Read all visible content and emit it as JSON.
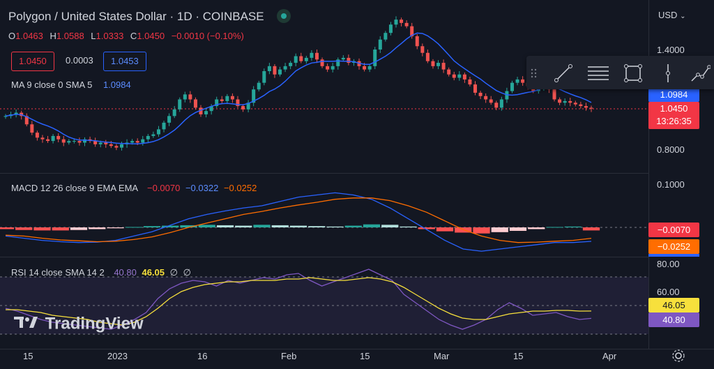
{
  "header": {
    "symbol_title": "Polygon / United States Dollar · 1D · COINBASE",
    "currency": "USD",
    "ohlc": [
      {
        "key": "O",
        "value": "1.0463"
      },
      {
        "key": "H",
        "value": "1.0588"
      },
      {
        "key": "L",
        "value": "1.0333"
      },
      {
        "key": "C",
        "value": "1.0450"
      },
      {
        "key": "",
        "value": "−0.0010 (−0.10%)"
      }
    ],
    "bid": "1.0450",
    "spread": "0.0003",
    "ask": "1.0453"
  },
  "indicators": {
    "ma": {
      "label": "MA 9 close 0 SMA 5",
      "value": "1.0984"
    },
    "macd": {
      "label": "MACD 12 26 close 9 EMA EMA",
      "hist": "−0.0070",
      "macd": "−0.0322",
      "signal": "−0.0252"
    },
    "rsi": {
      "label": "RSI 14 close SMA 14 2",
      "rsi": "40.80",
      "ma": "46.05",
      "extra1": "∅",
      "extra2": "∅"
    }
  },
  "price_axis": {
    "labels": [
      "1.4000",
      "0.8000"
    ]
  },
  "macd_axis": {
    "labels": [
      "0.1000"
    ]
  },
  "rsi_axis": {
    "labels": [
      "80.00",
      "60.00"
    ]
  },
  "tags": {
    "ma": "1.0984",
    "price": "1.0450",
    "countdown": "13:26:35",
    "macd_hist": "−0.0070",
    "macd_signal": "−0.0252",
    "rsi_ma": "46.05",
    "rsi": "40.80"
  },
  "time_axis": {
    "labels": [
      "15",
      "2023",
      "16",
      "Feb",
      "15",
      "Mar",
      "15",
      "Apr"
    ]
  },
  "logo_text": "TradingView",
  "colors": {
    "up": "#26a69a",
    "down": "#ef5350",
    "ma": "#2962ff",
    "signal": "#ff6d00",
    "rsi": "#7e57c2",
    "rsi_ma": "#f7e03c",
    "bg": "#131722"
  },
  "chart_data": {
    "type": "candlestick",
    "title": "Polygon / United States Dollar · 1D · COINBASE",
    "price_axis_ticks": [
      1.4,
      0.8
    ],
    "close": [
      1.0,
      1.01,
      1.02,
      1.0,
      0.95,
      0.9,
      0.87,
      0.86,
      0.85,
      0.88,
      0.86,
      0.84,
      0.85,
      0.85,
      0.84,
      0.86,
      0.85,
      0.83,
      0.84,
      0.83,
      0.82,
      0.81,
      0.83,
      0.84,
      0.85,
      0.84,
      0.86,
      0.88,
      0.89,
      0.92,
      0.96,
      1.0,
      1.04,
      1.1,
      1.13,
      1.1,
      1.05,
      1.01,
      1.03,
      1.06,
      1.1,
      1.09,
      1.12,
      1.1,
      1.06,
      1.04,
      1.08,
      1.16,
      1.2,
      1.27,
      1.3,
      1.25,
      1.28,
      1.3,
      1.32,
      1.36,
      1.33,
      1.35,
      1.38,
      1.34,
      1.3,
      1.28,
      1.3,
      1.34,
      1.35,
      1.32,
      1.33,
      1.3,
      1.28,
      1.3,
      1.4,
      1.46,
      1.5,
      1.55,
      1.58,
      1.56,
      1.54,
      1.48,
      1.42,
      1.38,
      1.33,
      1.3,
      1.32,
      1.28,
      1.25,
      1.23,
      1.25,
      1.22,
      1.19,
      1.14,
      1.12,
      1.1,
      1.08,
      1.05,
      1.1,
      1.15,
      1.2,
      1.22,
      1.2,
      1.18,
      1.15,
      1.17,
      1.19,
      1.16,
      1.1,
      1.08,
      1.09,
      1.08,
      1.07,
      1.06,
      1.05,
      1.045
    ],
    "macd": {
      "macd_line": [
        -0.02,
        -0.025,
        -0.03,
        -0.033,
        -0.035,
        -0.034,
        -0.03,
        -0.02,
        -0.01,
        0.005,
        0.02,
        0.03,
        0.038,
        0.045,
        0.05,
        0.06,
        0.07,
        0.075,
        0.08,
        0.075,
        0.065,
        0.045,
        0.02,
        -0.005,
        -0.03,
        -0.05,
        -0.055,
        -0.05,
        -0.045,
        -0.04,
        -0.035,
        -0.035,
        -0.0322
      ],
      "signal_line": [
        -0.018,
        -0.02,
        -0.025,
        -0.029,
        -0.031,
        -0.033,
        -0.032,
        -0.028,
        -0.022,
        -0.012,
        0.0,
        0.01,
        0.02,
        0.03,
        0.037,
        0.045,
        0.052,
        0.058,
        0.065,
        0.068,
        0.068,
        0.062,
        0.05,
        0.035,
        0.015,
        -0.005,
        -0.02,
        -0.03,
        -0.035,
        -0.034,
        -0.032,
        -0.03,
        -0.0252
      ],
      "histogram": [
        -0.004,
        -0.006,
        -0.007,
        -0.007,
        -0.006,
        -0.004,
        -0.002,
        0.001,
        0.003,
        0.004,
        0.005,
        0.006,
        0.005,
        0.004,
        0.006,
        0.005,
        0.004,
        0.003,
        0.002,
        0.004,
        0.007,
        0.006,
        0.002,
        -0.004,
        -0.009,
        -0.012,
        -0.014,
        -0.011,
        -0.008,
        -0.004,
        0.001,
        0.002,
        -0.007
      ]
    },
    "rsi": {
      "rsi_line": [
        48,
        46,
        43,
        40,
        38,
        37,
        36,
        35,
        34,
        33,
        36,
        40,
        45,
        55,
        62,
        66,
        68,
        67,
        64,
        68,
        66,
        68,
        70,
        69,
        72,
        73,
        68,
        64,
        67,
        70,
        73,
        76,
        72,
        68,
        58,
        52,
        46,
        40,
        36,
        33,
        36,
        40,
        47,
        52,
        48,
        43,
        44,
        45,
        42,
        40,
        40.8
      ],
      "rsi_ma": [
        47,
        47,
        46,
        45,
        43,
        42,
        41,
        40,
        38,
        37,
        36,
        38,
        42,
        48,
        55,
        60,
        63,
        65,
        66,
        67,
        67,
        68,
        68,
        68,
        69,
        69,
        70,
        69,
        68,
        68,
        69,
        70,
        69,
        67,
        63,
        58,
        53,
        48,
        44,
        41,
        40,
        40,
        42,
        44,
        45,
        46,
        46,
        46.5,
        46.5,
        46,
        46.05
      ]
    }
  }
}
